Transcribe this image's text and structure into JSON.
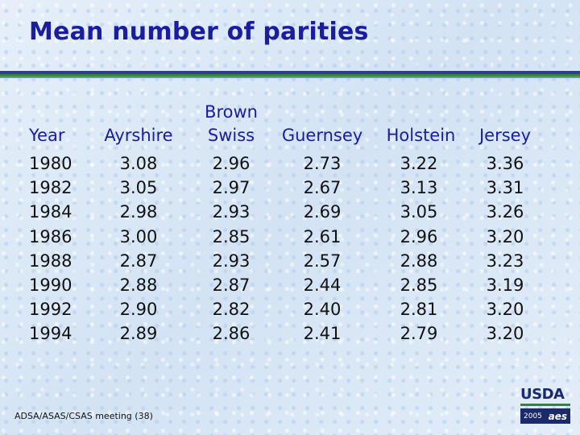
{
  "title": "Mean number of parities",
  "table": {
    "headers": {
      "year": "Year",
      "ayrshire": "Ayrshire",
      "brown_line1": "Brown",
      "brown_line2": "Swiss",
      "guernsey": "Guernsey",
      "holstein": "Holstein",
      "jersey": "Jersey"
    },
    "rows": [
      {
        "year": "1980",
        "ayrshire": "3.08",
        "brown_swiss": "2.96",
        "guernsey": "2.73",
        "holstein": "3.22",
        "jersey": "3.36"
      },
      {
        "year": "1982",
        "ayrshire": "3.05",
        "brown_swiss": "2.97",
        "guernsey": "2.67",
        "holstein": "3.13",
        "jersey": "3.31"
      },
      {
        "year": "1984",
        "ayrshire": "2.98",
        "brown_swiss": "2.93",
        "guernsey": "2.69",
        "holstein": "3.05",
        "jersey": "3.26"
      },
      {
        "year": "1986",
        "ayrshire": "3.00",
        "brown_swiss": "2.85",
        "guernsey": "2.61",
        "holstein": "2.96",
        "jersey": "3.20"
      },
      {
        "year": "1988",
        "ayrshire": "2.87",
        "brown_swiss": "2.93",
        "guernsey": "2.57",
        "holstein": "2.88",
        "jersey": "3.23"
      },
      {
        "year": "1990",
        "ayrshire": "2.88",
        "brown_swiss": "2.87",
        "guernsey": "2.44",
        "holstein": "2.85",
        "jersey": "3.19"
      },
      {
        "year": "1992",
        "ayrshire": "2.90",
        "brown_swiss": "2.82",
        "guernsey": "2.40",
        "holstein": "2.81",
        "jersey": "3.20"
      },
      {
        "year": "1994",
        "ayrshire": "2.89",
        "brown_swiss": "2.86",
        "guernsey": "2.41",
        "holstein": "2.79",
        "jersey": "3.20"
      }
    ]
  },
  "footer": "ADSA/ASAS/CSAS meeting (38)",
  "logo": {
    "brand": "USDA",
    "year": "2005",
    "mark": "aes"
  },
  "colors": {
    "title": "#1a1d9e",
    "header": "#1a1d9e",
    "rule_blue": "#2e3f8a",
    "rule_green": "#2f8a3a"
  }
}
